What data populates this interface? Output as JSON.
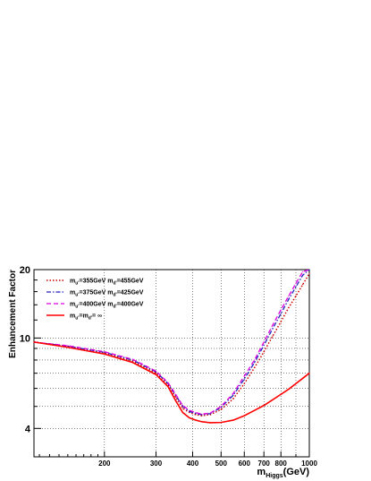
{
  "chart_data": {
    "type": "line",
    "title": "",
    "xlabel": {
      "main": "m",
      "sub": "Higgs",
      "unit": "(GeV)"
    },
    "ylabel": "Enhancement Factor",
    "x_scale": "log",
    "y_scale": "log",
    "xlim": [
      115,
      1000
    ],
    "ylim": [
      3,
      20
    ],
    "x_ticks": [
      {
        "value": 200,
        "label": "200"
      },
      {
        "value": 300,
        "label": "300"
      },
      {
        "value": 400,
        "label": "400"
      },
      {
        "value": 500,
        "label": "500"
      },
      {
        "value": 600,
        "label": "600"
      },
      {
        "value": 700,
        "label": "700"
      },
      {
        "value": 800,
        "label": "800"
      },
      {
        "value": 1000,
        "label": "1000"
      }
    ],
    "x_grid": [
      200,
      300,
      400,
      500,
      600,
      700,
      800,
      900,
      1000
    ],
    "y_ticks": [
      {
        "value": 4,
        "label": "4"
      },
      {
        "value": 10,
        "label": "10"
      },
      {
        "value": 20,
        "label": "20"
      }
    ],
    "y_grid": [
      4,
      5,
      6,
      7,
      8,
      9,
      10
    ],
    "grid": true,
    "legend_position": "top-left",
    "series": [
      {
        "name_parts": [
          {
            "t": "m"
          },
          {
            "t": "u'",
            "sub": true
          },
          {
            "t": "=355GeV m"
          },
          {
            "t": "d'",
            "sub": true
          },
          {
            "t": "=455GeV"
          }
        ],
        "color": "#cc0000",
        "style": "dotted",
        "x": [
          115,
          150,
          200,
          250,
          300,
          330,
          350,
          370,
          390,
          410,
          430,
          460,
          500,
          550,
          600,
          650,
          700,
          750,
          800,
          850,
          900,
          950,
          1000
        ],
        "y": [
          9.6,
          9.2,
          8.6,
          7.9,
          7.0,
          6.2,
          5.5,
          4.9,
          4.7,
          4.6,
          4.55,
          4.6,
          4.85,
          5.4,
          6.3,
          7.4,
          8.7,
          10.2,
          11.8,
          13.6,
          15.3,
          17.2,
          19.2
        ]
      },
      {
        "name_parts": [
          {
            "t": "m"
          },
          {
            "t": "u'",
            "sub": true
          },
          {
            "t": "=375GeV m"
          },
          {
            "t": "d'",
            "sub": true
          },
          {
            "t": "=425GeV"
          }
        ],
        "color": "#2222bb",
        "style": "dashdot",
        "x": [
          115,
          150,
          200,
          250,
          300,
          330,
          350,
          370,
          390,
          410,
          430,
          460,
          500,
          550,
          600,
          650,
          700,
          750,
          800,
          850,
          900,
          950,
          1000
        ],
        "y": [
          9.6,
          9.2,
          8.65,
          8.0,
          7.1,
          6.3,
          5.6,
          5.0,
          4.75,
          4.65,
          4.6,
          4.65,
          4.95,
          5.6,
          6.6,
          7.8,
          9.3,
          11.0,
          12.8,
          14.8,
          16.8,
          18.9,
          21.0
        ]
      },
      {
        "name_parts": [
          {
            "t": "m"
          },
          {
            "t": "u'",
            "sub": true
          },
          {
            "t": "=400GeV m"
          },
          {
            "t": "d'",
            "sub": true
          },
          {
            "t": "=400GeV"
          }
        ],
        "color": "#dd00dd",
        "style": "dashed",
        "x": [
          115,
          150,
          200,
          250,
          300,
          330,
          350,
          370,
          390,
          410,
          430,
          460,
          500,
          550,
          600,
          650,
          700,
          750,
          800,
          850,
          900,
          950,
          1000
        ],
        "y": [
          9.6,
          9.25,
          8.7,
          8.05,
          7.15,
          6.35,
          5.65,
          5.05,
          4.8,
          4.7,
          4.62,
          4.68,
          5.0,
          5.7,
          6.8,
          8.0,
          9.6,
          11.4,
          13.3,
          15.3,
          17.4,
          19.6,
          21.8
        ]
      },
      {
        "name_parts": [
          {
            "t": "m"
          },
          {
            "t": "u'",
            "sub": true
          },
          {
            "t": "=m"
          },
          {
            "t": "d'",
            "sub": true
          },
          {
            "t": "= ∞"
          }
        ],
        "color": "#ff0000",
        "style": "solid",
        "x": [
          115,
          150,
          200,
          250,
          300,
          330,
          350,
          370,
          390,
          410,
          430,
          460,
          500,
          550,
          600,
          650,
          700,
          750,
          800,
          850,
          900,
          950,
          1000
        ],
        "y": [
          9.6,
          9.1,
          8.5,
          7.8,
          6.9,
          6.1,
          5.3,
          4.7,
          4.45,
          4.35,
          4.28,
          4.24,
          4.25,
          4.35,
          4.55,
          4.8,
          5.05,
          5.35,
          5.65,
          5.95,
          6.3,
          6.65,
          7.0
        ]
      }
    ]
  }
}
